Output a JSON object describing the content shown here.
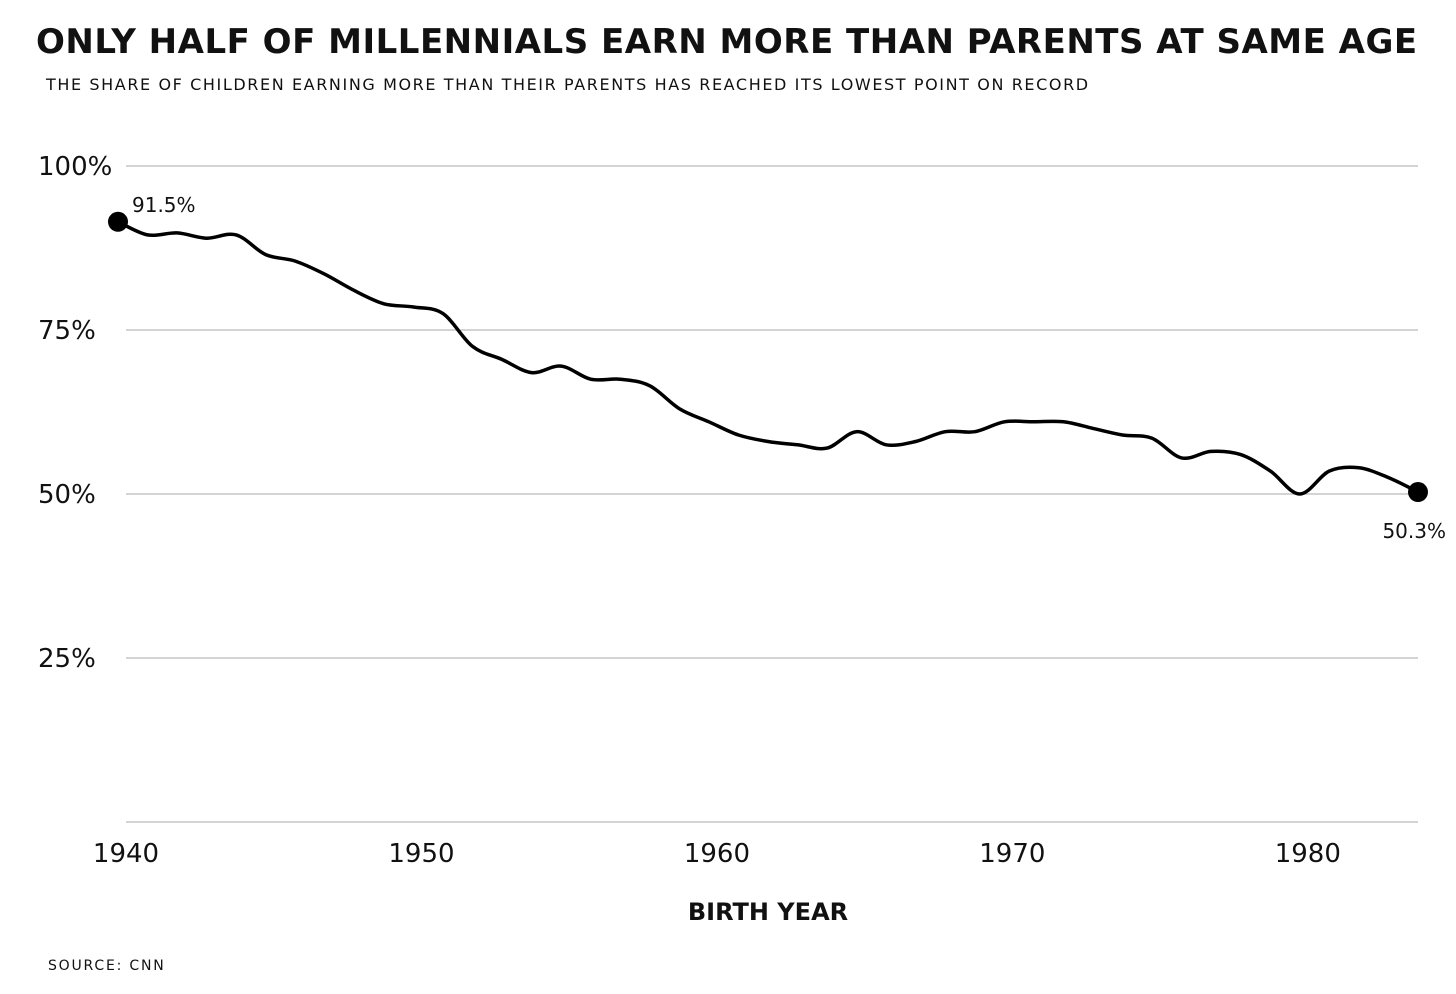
{
  "title": "ONLY HALF OF MILLENNIALS EARN MORE THAN PARENTS AT SAME AGE",
  "subtitle": "THE SHARE OF CHILDREN EARNING MORE THAN THEIR PARENTS HAS REACHED ITS LOWEST POINT ON RECORD",
  "source": "SOURCE: CNN",
  "chart_data": {
    "type": "line",
    "title": "ONLY HALF OF MILLENNIALS EARN MORE THAN PARENTS AT SAME AGE",
    "subtitle": "THE SHARE OF CHILDREN EARNING MORE THAN THEIR PARENTS HAS REACHED ITS LOWEST POINT ON RECORD",
    "xlabel": "BIRTH YEAR",
    "ylabel": "",
    "xlim": [
      1940,
      1984
    ],
    "ylim": [
      0,
      100
    ],
    "x_ticks": [
      1940,
      1950,
      1960,
      1970,
      1980
    ],
    "x_tick_labels": [
      "1940",
      "1950",
      "1960",
      "1970",
      "1980"
    ],
    "y_ticks": [
      25,
      50,
      75,
      100
    ],
    "y_tick_labels": [
      "25%",
      "50%",
      "75%",
      "100%"
    ],
    "grid": "horizontal",
    "line_color": "#000000",
    "grid_color": "#bbbbbb",
    "series": [
      {
        "x": [
          1940,
          1941,
          1942,
          1943,
          1944,
          1945,
          1946,
          1947,
          1948,
          1949,
          1950,
          1951,
          1952,
          1953,
          1954,
          1955,
          1956,
          1957,
          1958,
          1959,
          1960,
          1961,
          1962,
          1963,
          1964,
          1965,
          1966,
          1967,
          1968,
          1969,
          1970,
          1971,
          1972,
          1973,
          1974,
          1975,
          1976,
          1977,
          1978,
          1979,
          1980,
          1981,
          1982,
          1983,
          1984
        ],
        "values": [
          91.5,
          89.5,
          89.8,
          89.0,
          89.5,
          86.5,
          85.5,
          83.5,
          81.0,
          79.0,
          78.5,
          77.5,
          72.5,
          70.5,
          68.5,
          69.5,
          67.5,
          67.5,
          66.5,
          63.0,
          61.0,
          59.0,
          58.0,
          57.5,
          57.0,
          59.5,
          57.5,
          58.0,
          59.5,
          59.5,
          61.0,
          61.0,
          61.0,
          60.0,
          59.0,
          58.5,
          55.5,
          56.5,
          56.0,
          53.5,
          50.0,
          53.5,
          54.0,
          52.5,
          50.3
        ]
      }
    ],
    "annotations": [
      {
        "x": 1940,
        "y": 91.5,
        "text": "91.5%"
      },
      {
        "x": 1984,
        "y": 50.3,
        "text": "50.3%"
      }
    ]
  }
}
